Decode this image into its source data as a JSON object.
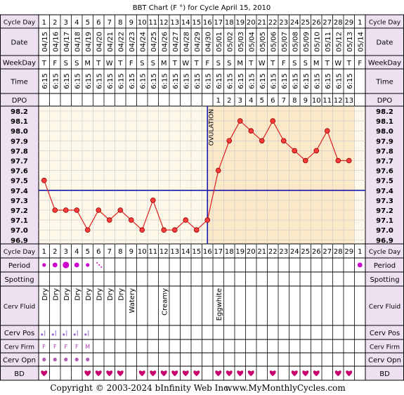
{
  "title": "BBT Chart (F °) for Cycle April 15, 2010",
  "footer": {
    "copyright": "Copyright © 2003-2024 bInfinity Web Inc.",
    "site": "www.MyMonthlyCycles.com"
  },
  "row_labels": {
    "cycle_day": "Cycle Day",
    "date": "Date",
    "weekday": "WeekDay",
    "time": "Time",
    "dpo": "DPO",
    "period": "Period",
    "spotting": "Spotting",
    "cerv_fluid": "Cerv Fluid",
    "cerv_pos": "Cerv Pos",
    "cerv_firm": "Cerv Firm",
    "cerv_opn": "Cerv Opn",
    "bd": "BD"
  },
  "ovulation_label": "OVULATION",
  "colors": {
    "pre_ovulation_bg": "#fdf8e8",
    "post_ovulation_bg": "#fbe8c8",
    "temp_line": "#dd2222",
    "coverline": "#1a1aaa",
    "heart": "#c8006e",
    "dot": "#cc00cc",
    "header_bg": "#ede0f0",
    "cell_bg": "#ffffff"
  },
  "chart_data": {
    "type": "line",
    "title": "BBT Chart (F °) for Cycle April 15, 2010",
    "cycle_days": [
      "1",
      "2",
      "3",
      "4",
      "5",
      "6",
      "7",
      "8",
      "9",
      "10",
      "11",
      "12",
      "13",
      "14",
      "15",
      "16",
      "17",
      "18",
      "19",
      "20",
      "21",
      "22",
      "23",
      "24",
      "25",
      "26",
      "27",
      "28",
      "29",
      "1"
    ],
    "dates": [
      "04/15",
      "04/16",
      "04/17",
      "04/18",
      "04/19",
      "04/20",
      "04/21",
      "04/22",
      "04/23",
      "04/24",
      "04/25",
      "04/26",
      "04/27",
      "04/28",
      "04/29",
      "04/30",
      "05/01",
      "05/02",
      "05/03",
      "05/04",
      "05/05",
      "05/06",
      "05/07",
      "05/08",
      "05/09",
      "05/10",
      "05/11",
      "05/12",
      "05/13",
      "05/14"
    ],
    "weekdays": [
      "T",
      "F",
      "S",
      "S",
      "M",
      "T",
      "W",
      "T",
      "F",
      "S",
      "S",
      "M",
      "T",
      "W",
      "T",
      "F",
      "S",
      "S",
      "M",
      "T",
      "W",
      "T",
      "F",
      "S",
      "S",
      "M",
      "T",
      "W",
      "T",
      "F"
    ],
    "times": [
      "6:15",
      "6:15",
      "6:15",
      "6:15",
      "6:15",
      "6:15",
      "6:15",
      "6:15",
      "6:15",
      "6:15",
      "6:15",
      "6:15",
      "6:15",
      "6:15",
      "6:15",
      "6:15",
      "6:15",
      "6:15",
      "6:15",
      "6:15",
      "6:15",
      "6:15",
      "6:15",
      "6:15",
      "6:15",
      "6:15",
      "6:15",
      "6:15",
      "6:15",
      ""
    ],
    "dpo": [
      "",
      "",
      "",
      "",
      "",
      "",
      "",
      "",
      "",
      "",
      "",
      "",
      "",
      "",
      "",
      "",
      "1",
      "2",
      "3",
      "4",
      "5",
      "6",
      "7",
      "8",
      "9",
      "10",
      "11",
      "12",
      "13",
      ""
    ],
    "temperatures": [
      97.5,
      97.2,
      97.2,
      97.2,
      97.0,
      97.2,
      97.1,
      97.2,
      97.1,
      97.0,
      97.3,
      97.0,
      97.0,
      97.1,
      97.0,
      97.1,
      97.6,
      97.9,
      98.1,
      98.0,
      97.9,
      98.1,
      97.9,
      97.8,
      97.7,
      97.8,
      98.0,
      97.7,
      97.7,
      null
    ],
    "y_ticks": [
      "98.2",
      "98.1",
      "98.0",
      "97.9",
      "97.8",
      "97.7",
      "97.6",
      "97.5",
      "97.4",
      "97.3",
      "97.2",
      "97.1",
      "97.0",
      "96.9"
    ],
    "ylim": [
      96.9,
      98.2
    ],
    "coverline": 97.4,
    "ovulation_day": 16,
    "period": [
      "small",
      "medium",
      "large",
      "medium",
      "small",
      "spot",
      "",
      "",
      "",
      "",
      "",
      "",
      "",
      "",
      "",
      "",
      "",
      "",
      "",
      "",
      "",
      "",
      "",
      "",
      "",
      "",
      "",
      "",
      "",
      "medium"
    ],
    "cerv_fluid": [
      "Dry",
      "Dry",
      "Dry",
      "Dry",
      "Dry",
      "Dry",
      "Dry",
      "Dry",
      "Watery",
      "",
      "",
      "Creamy",
      "",
      "",
      "",
      "",
      "Eggwhite",
      "",
      "",
      "",
      "",
      "",
      "",
      "",
      "",
      "",
      "",
      "",
      "",
      ""
    ],
    "cerv_pos": [
      "l",
      "l",
      "l",
      "l",
      "l",
      "",
      "",
      "",
      "",
      "",
      "",
      "",
      "",
      "",
      "",
      "",
      "",
      "",
      "",
      "",
      "",
      "",
      "",
      "",
      "",
      "",
      "",
      "",
      "",
      ""
    ],
    "cerv_firm": [
      "F",
      "F",
      "F",
      "F",
      "M",
      "",
      "",
      "",
      "",
      "",
      "",
      "",
      "",
      "",
      "",
      "",
      "",
      "",
      "",
      "",
      "",
      "",
      "",
      "",
      "",
      "",
      "",
      "",
      "",
      ""
    ],
    "cerv_opn": [
      "dot",
      "dot",
      "dot",
      "dot",
      "dot",
      "",
      "",
      "",
      "",
      "",
      "",
      "",
      "",
      "",
      "",
      "",
      "",
      "",
      "",
      "",
      "",
      "",
      "",
      "",
      "",
      "",
      "",
      "",
      "",
      ""
    ],
    "bd": [
      true,
      false,
      false,
      false,
      true,
      true,
      true,
      true,
      false,
      true,
      true,
      true,
      true,
      true,
      true,
      false,
      true,
      true,
      true,
      true,
      false,
      true,
      false,
      true,
      true,
      true,
      false,
      true,
      true,
      false
    ]
  }
}
